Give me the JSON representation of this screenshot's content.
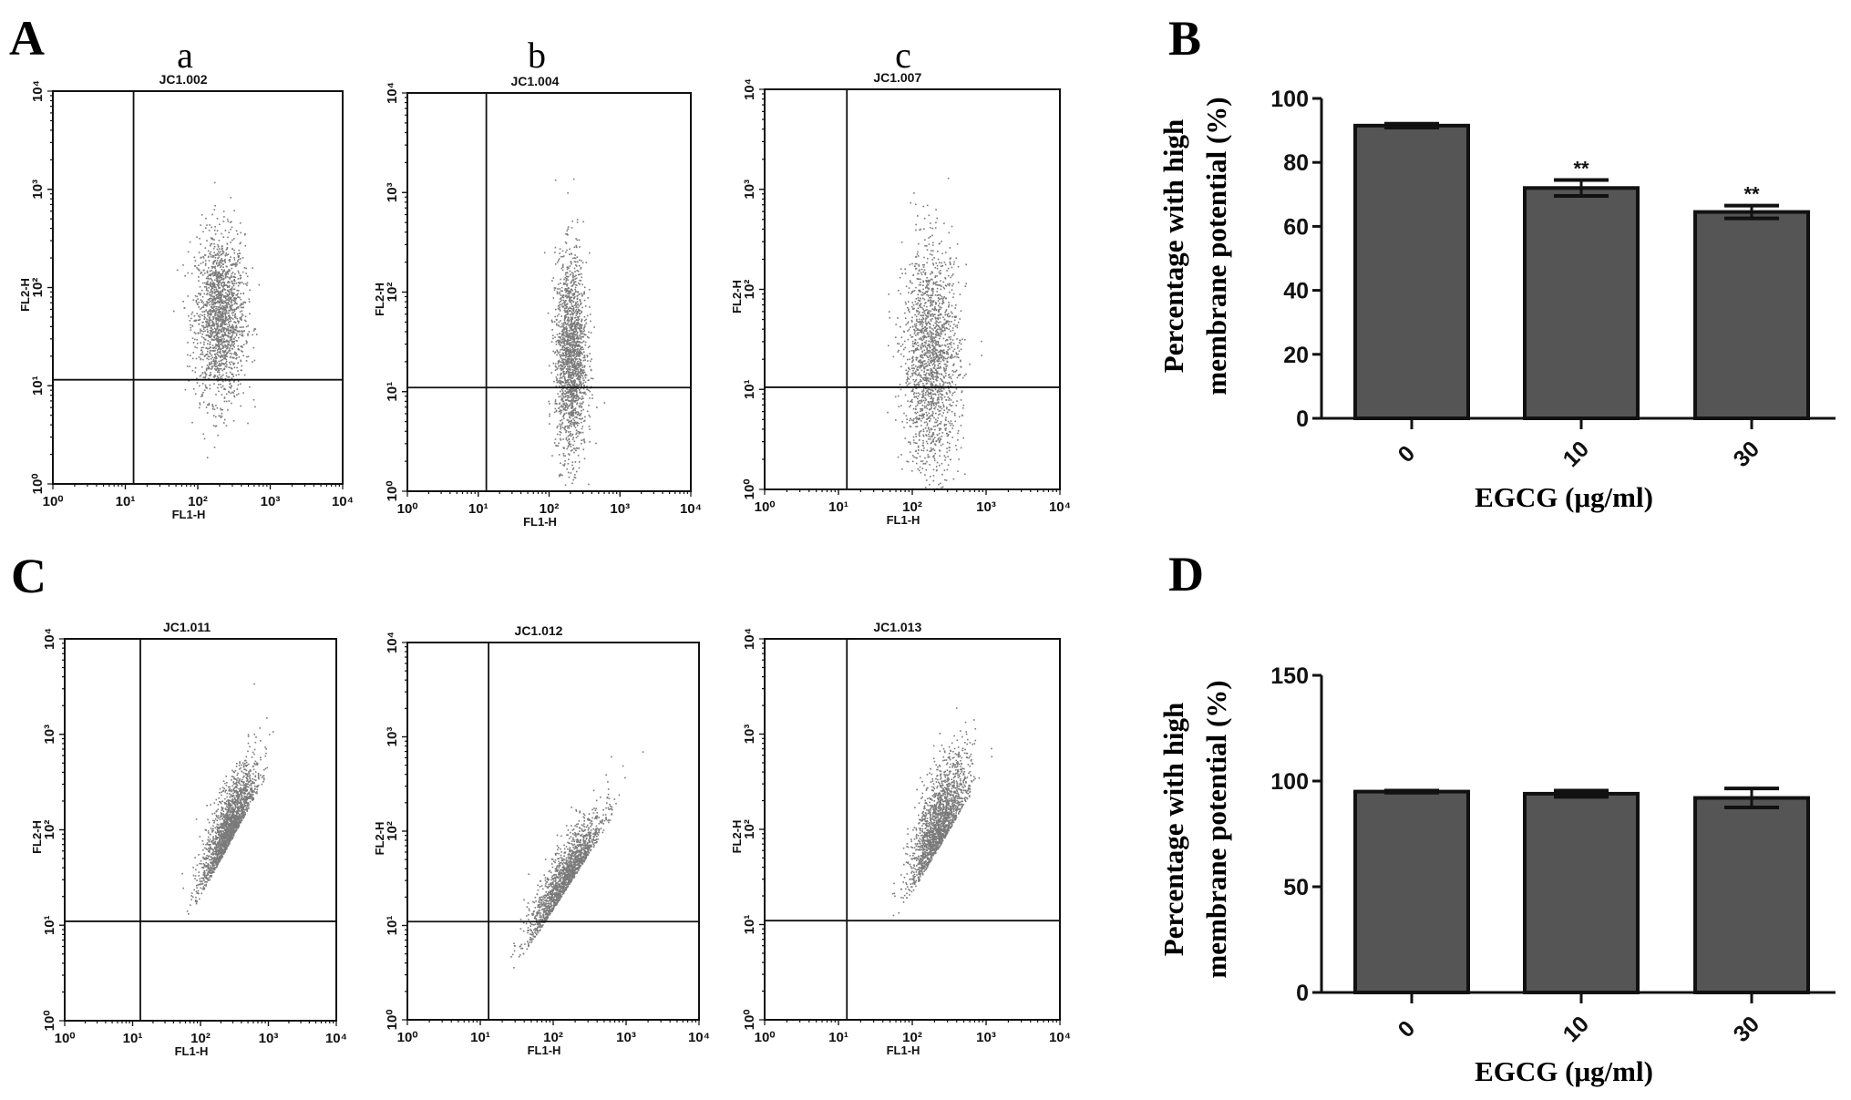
{
  "panel_labels": {
    "A": "A",
    "B": "B",
    "C": "C",
    "D": "D"
  },
  "sub_labels": [
    "a",
    "b",
    "c"
  ],
  "chart_data": [
    {
      "type": "scatter",
      "panel": "A",
      "sub": "a",
      "title": "JC1.002",
      "xlabel": "FL1-H",
      "ylabel": "FL2-H",
      "xscale": "log",
      "yscale": "log",
      "xlim": [
        1,
        10000
      ],
      "ylim": [
        1,
        10000
      ],
      "xticks": [
        "10⁰",
        "10¹",
        "10²",
        "10³",
        "10⁴"
      ],
      "yticks": [
        "10⁰",
        "10¹",
        "10²",
        "10³",
        "10⁴"
      ],
      "quadrant_gate": {
        "FL1": 13,
        "FL2": 11.5
      },
      "population": {
        "shape": "ellipse",
        "log_center": [
          2.3,
          1.7
        ],
        "log_sd": [
          0.17,
          0.42
        ],
        "n": 1800
      }
    },
    {
      "type": "scatter",
      "panel": "A",
      "sub": "b",
      "title": "JC1.004",
      "xlabel": "FL1-H",
      "ylabel": "FL2-H",
      "xscale": "log",
      "yscale": "log",
      "xlim": [
        1,
        10000
      ],
      "ylim": [
        1,
        10000
      ],
      "xticks": [
        "10⁰",
        "10¹",
        "10²",
        "10³",
        "10⁴"
      ],
      "yticks": [
        "10⁰",
        "10¹",
        "10²",
        "10³",
        "10⁴"
      ],
      "quadrant_gate": {
        "FL1": 13,
        "FL2": 11
      },
      "population": {
        "shape": "ellipse",
        "log_center": [
          2.3,
          1.35
        ],
        "log_sd": [
          0.11,
          0.5
        ],
        "n": 1800
      }
    },
    {
      "type": "scatter",
      "panel": "A",
      "sub": "c",
      "title": "JC1.007",
      "xlabel": "FL1-H",
      "ylabel": "FL2-H",
      "xscale": "log",
      "yscale": "log",
      "xlim": [
        1,
        10000
      ],
      "ylim": [
        1,
        10000
      ],
      "xticks": [
        "10⁰",
        "10¹",
        "10²",
        "10³",
        "10⁴"
      ],
      "yticks": [
        "10⁰",
        "10¹",
        "10²",
        "10³",
        "10⁴"
      ],
      "quadrant_gate": {
        "FL1": 13,
        "FL2": 10.5
      },
      "population": {
        "shape": "ellipse",
        "log_center": [
          2.25,
          1.3
        ],
        "log_sd": [
          0.19,
          0.55
        ],
        "n": 1800
      }
    },
    {
      "type": "scatter",
      "panel": "C",
      "title": "JC1.011",
      "xlabel": "FL1-H",
      "ylabel": "FL2-H",
      "xscale": "log",
      "yscale": "log",
      "xlim": [
        1,
        10000
      ],
      "ylim": [
        1,
        10000
      ],
      "xticks": [
        "10⁰",
        "10¹",
        "10²",
        "10³",
        "10⁴"
      ],
      "yticks": [
        "10⁰",
        "10¹",
        "10²",
        "10³",
        "10⁴"
      ],
      "quadrant_gate": {
        "FL1": 13,
        "FL2": 11
      },
      "population": {
        "shape": "diagonal",
        "log_center": [
          2.4,
          1.95
        ],
        "log_sd": [
          0.2,
          0.28
        ],
        "slope": 1.3,
        "n": 1800
      }
    },
    {
      "type": "scatter",
      "panel": "C",
      "title": "JC1.012",
      "xlabel": "FL1-H",
      "ylabel": "FL2-H",
      "xscale": "log",
      "yscale": "log",
      "xlim": [
        1,
        10000
      ],
      "ylim": [
        1,
        10000
      ],
      "xticks": [
        "10⁰",
        "10¹",
        "10²",
        "10³",
        "10⁴"
      ],
      "yticks": [
        "10⁰",
        "10¹",
        "10²",
        "10³",
        "10⁴"
      ],
      "quadrant_gate": {
        "FL1": 13,
        "FL2": 11
      },
      "population": {
        "shape": "diagonal",
        "log_center": [
          2.15,
          1.45
        ],
        "log_sd": [
          0.25,
          0.22
        ],
        "slope": 1.2,
        "n": 1600
      }
    },
    {
      "type": "scatter",
      "panel": "C",
      "title": "JC1.013",
      "xlabel": "FL1-H",
      "ylabel": "FL2-H",
      "xscale": "log",
      "yscale": "log",
      "xlim": [
        1,
        10000
      ],
      "ylim": [
        1,
        10000
      ],
      "xticks": [
        "10⁰",
        "10¹",
        "10²",
        "10³",
        "10⁴"
      ],
      "yticks": [
        "10⁰",
        "10¹",
        "10²",
        "10³",
        "10⁴"
      ],
      "quadrant_gate": {
        "FL1": 13,
        "FL2": 11
      },
      "population": {
        "shape": "diagonal",
        "log_center": [
          2.35,
          1.95
        ],
        "log_sd": [
          0.2,
          0.35
        ],
        "slope": 1.3,
        "n": 1800
      }
    },
    {
      "type": "bar",
      "panel": "B",
      "categories": [
        "0",
        "10",
        "30"
      ],
      "values": [
        91.5,
        72,
        64.5
      ],
      "errors": [
        0.6,
        2.5,
        2
      ],
      "annotations": [
        "",
        "**",
        "**"
      ],
      "xlabel": "EGCG (μg/ml)",
      "ylabel": [
        "Percentage with high",
        "membrane potential (%)"
      ],
      "ylim": [
        0,
        100
      ],
      "yticks": [
        "0",
        "20",
        "40",
        "60",
        "80",
        "100"
      ],
      "bar_color": "#555555"
    },
    {
      "type": "bar",
      "panel": "D",
      "categories": [
        "0",
        "10",
        "30"
      ],
      "values": [
        95,
        94,
        92
      ],
      "errors": [
        0.5,
        1.5,
        4.5
      ],
      "annotations": [
        "",
        "",
        ""
      ],
      "xlabel": "EGCG (μg/ml)",
      "ylabel": [
        "Percentage with high",
        "membrane potential (%)"
      ],
      "ylim": [
        0,
        150
      ],
      "yticks": [
        "0",
        "50",
        "100",
        "150"
      ],
      "bar_color": "#555555"
    }
  ]
}
